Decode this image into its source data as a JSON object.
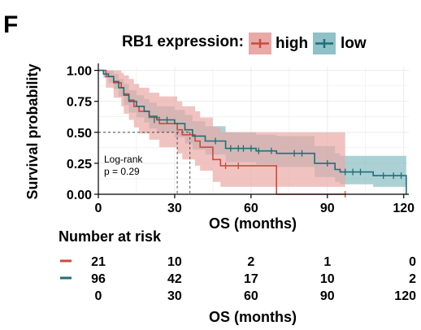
{
  "panel_label": "F",
  "legend": {
    "title": "RB1 expression:",
    "items": [
      {
        "label": "high",
        "color": "#cc4a3c"
      },
      {
        "label": "low",
        "color": "#1f6f78"
      }
    ]
  },
  "colors": {
    "high": "#cc4a3c",
    "low": "#1f6f78",
    "high_ci": "#e9a9a7",
    "low_ci": "#8fc1c6",
    "overlap_ci": "#a8a8a8",
    "grid": "#ebebeb"
  },
  "annotation": {
    "line1": "Log-rank",
    "line2": "p = 0.29"
  },
  "risk_table": {
    "title": "Number at risk",
    "rows": [
      {
        "group": "high",
        "values": [
          "21",
          "10",
          "2",
          "1",
          "0"
        ]
      },
      {
        "group": "low",
        "values": [
          "96",
          "42",
          "17",
          "10",
          "2"
        ]
      },
      {
        "group": "",
        "values": [
          "0",
          "30",
          "60",
          "90",
          "120"
        ]
      }
    ],
    "xlabel": "OS (months)"
  },
  "chart_data": {
    "type": "line",
    "subtype": "kaplan-meier",
    "title": "",
    "xlabel": "OS (months)",
    "ylabel": "Survival probability",
    "xlim": [
      0,
      122
    ],
    "ylim": [
      0,
      1.03
    ],
    "x_ticks": [
      0,
      30,
      60,
      90,
      120
    ],
    "x_tick_labels": [
      "0",
      "30",
      "60",
      "90",
      "120"
    ],
    "y_ticks": [
      0,
      0.25,
      0.5,
      0.75,
      1.0
    ],
    "y_tick_labels": [
      "0.00",
      "0.25",
      "0.50",
      "0.75",
      "1.00"
    ],
    "grid": true,
    "legend_position": "top",
    "median_line": {
      "y": 0.5,
      "x_values": [
        31,
        36
      ]
    },
    "series": [
      {
        "name": "high",
        "color": "#cc4a3c",
        "steps": [
          [
            0,
            1.0
          ],
          [
            3,
            0.95
          ],
          [
            6,
            0.9
          ],
          [
            9,
            0.86
          ],
          [
            10,
            0.81
          ],
          [
            12,
            0.76
          ],
          [
            14,
            0.71
          ],
          [
            16,
            0.67
          ],
          [
            20,
            0.62
          ],
          [
            24,
            0.57
          ],
          [
            31,
            0.52
          ],
          [
            33,
            0.48
          ],
          [
            38,
            0.43
          ],
          [
            40,
            0.38
          ],
          [
            45,
            0.28
          ],
          [
            48,
            0.23
          ],
          [
            70,
            0.0
          ],
          [
            97,
            0.0
          ]
        ],
        "ci_upper": [
          [
            0,
            1.0
          ],
          [
            3,
            1.0
          ],
          [
            6,
            1.0
          ],
          [
            9,
            0.98
          ],
          [
            10,
            0.96
          ],
          [
            12,
            0.93
          ],
          [
            14,
            0.89
          ],
          [
            16,
            0.86
          ],
          [
            20,
            0.82
          ],
          [
            24,
            0.79
          ],
          [
            31,
            0.75
          ],
          [
            33,
            0.71
          ],
          [
            38,
            0.67
          ],
          [
            40,
            0.62
          ],
          [
            45,
            0.54
          ],
          [
            48,
            0.5
          ],
          [
            97,
            0.5
          ]
        ],
        "ci_lower": [
          [
            0,
            1.0
          ],
          [
            3,
            0.86
          ],
          [
            6,
            0.78
          ],
          [
            9,
            0.71
          ],
          [
            10,
            0.65
          ],
          [
            12,
            0.6
          ],
          [
            14,
            0.54
          ],
          [
            16,
            0.49
          ],
          [
            20,
            0.44
          ],
          [
            24,
            0.38
          ],
          [
            31,
            0.33
          ],
          [
            33,
            0.28
          ],
          [
            38,
            0.23
          ],
          [
            40,
            0.19
          ],
          [
            45,
            0.1
          ],
          [
            48,
            0.06
          ],
          [
            97,
            0.06
          ]
        ],
        "censor": [
          [
            50,
            0.23
          ],
          [
            55,
            0.23
          ],
          [
            97,
            0.0
          ]
        ]
      },
      {
        "name": "low",
        "color": "#1f6f78",
        "steps": [
          [
            0,
            1.0
          ],
          [
            2,
            0.97
          ],
          [
            4,
            0.95
          ],
          [
            6,
            0.91
          ],
          [
            8,
            0.86
          ],
          [
            10,
            0.8
          ],
          [
            12,
            0.75
          ],
          [
            15,
            0.71
          ],
          [
            18,
            0.67
          ],
          [
            20,
            0.63
          ],
          [
            23,
            0.6
          ],
          [
            30,
            0.57
          ],
          [
            34,
            0.52
          ],
          [
            37,
            0.47
          ],
          [
            42,
            0.43
          ],
          [
            50,
            0.37
          ],
          [
            62,
            0.35
          ],
          [
            70,
            0.33
          ],
          [
            85,
            0.25
          ],
          [
            93,
            0.2
          ],
          [
            95,
            0.18
          ],
          [
            108,
            0.15
          ],
          [
            120,
            0.15
          ],
          [
            121,
            0.0
          ]
        ],
        "ci_upper": [
          [
            0,
            1.0
          ],
          [
            2,
            1.0
          ],
          [
            4,
            1.0
          ],
          [
            6,
            0.97
          ],
          [
            8,
            0.93
          ],
          [
            10,
            0.89
          ],
          [
            12,
            0.84
          ],
          [
            15,
            0.8
          ],
          [
            18,
            0.77
          ],
          [
            20,
            0.74
          ],
          [
            23,
            0.71
          ],
          [
            30,
            0.68
          ],
          [
            34,
            0.64
          ],
          [
            37,
            0.59
          ],
          [
            42,
            0.55
          ],
          [
            50,
            0.5
          ],
          [
            62,
            0.48
          ],
          [
            70,
            0.47
          ],
          [
            85,
            0.39
          ],
          [
            93,
            0.33
          ],
          [
            95,
            0.31
          ],
          [
            108,
            0.31
          ],
          [
            121,
            0.31
          ]
        ],
        "ci_lower": [
          [
            0,
            1.0
          ],
          [
            2,
            0.94
          ],
          [
            4,
            0.9
          ],
          [
            6,
            0.85
          ],
          [
            8,
            0.79
          ],
          [
            10,
            0.72
          ],
          [
            12,
            0.66
          ],
          [
            15,
            0.62
          ],
          [
            18,
            0.58
          ],
          [
            20,
            0.53
          ],
          [
            23,
            0.5
          ],
          [
            30,
            0.46
          ],
          [
            34,
            0.41
          ],
          [
            37,
            0.36
          ],
          [
            42,
            0.32
          ],
          [
            50,
            0.26
          ],
          [
            62,
            0.24
          ],
          [
            70,
            0.22
          ],
          [
            85,
            0.14
          ],
          [
            93,
            0.1
          ],
          [
            95,
            0.08
          ],
          [
            108,
            0.06
          ],
          [
            121,
            0.06
          ]
        ],
        "censor": [
          [
            22,
            0.6
          ],
          [
            27,
            0.6
          ],
          [
            46,
            0.43
          ],
          [
            52,
            0.37
          ],
          [
            55,
            0.37
          ],
          [
            57,
            0.37
          ],
          [
            60,
            0.37
          ],
          [
            63,
            0.35
          ],
          [
            68,
            0.35
          ],
          [
            77,
            0.33
          ],
          [
            80,
            0.33
          ],
          [
            90,
            0.25
          ],
          [
            97,
            0.18
          ],
          [
            100,
            0.18
          ],
          [
            103,
            0.18
          ],
          [
            112,
            0.15
          ],
          [
            116,
            0.15
          ],
          [
            119,
            0.15
          ]
        ]
      }
    ]
  }
}
